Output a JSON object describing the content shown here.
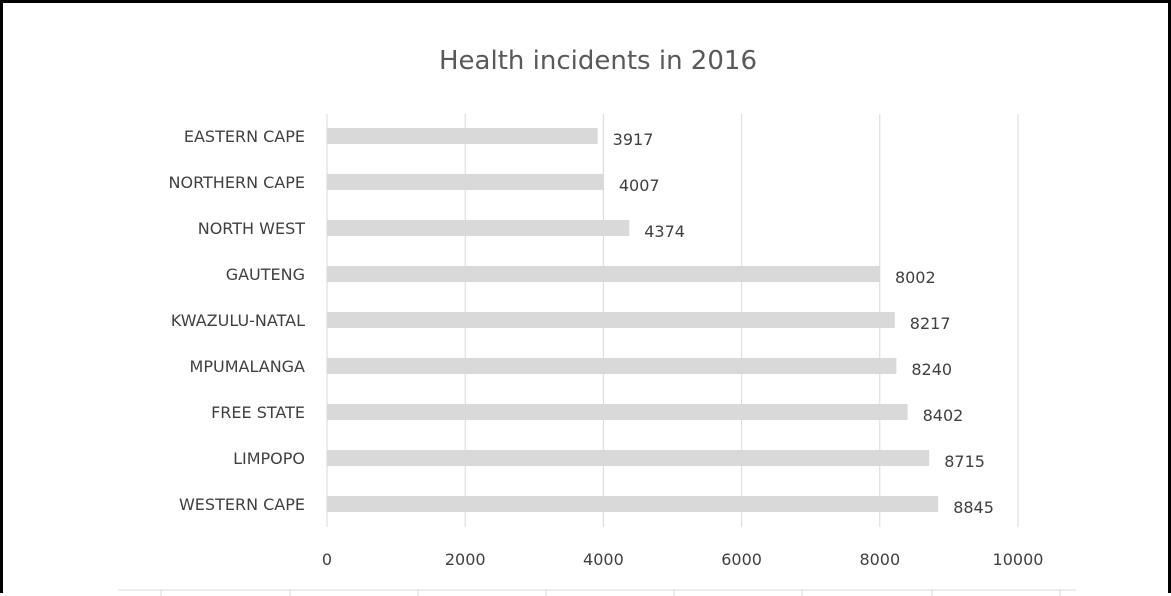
{
  "chart_data": {
    "type": "bar",
    "orientation": "horizontal",
    "title": "Health incidents in 2016",
    "categories": [
      "EASTERN CAPE",
      "NORTHERN CAPE",
      "NORTH WEST",
      "GAUTENG",
      "KWAZULU-NATAL",
      "MPUMALANGA",
      "FREE STATE",
      "LIMPOPO",
      "WESTERN CAPE"
    ],
    "values": [
      3917,
      4007,
      4374,
      8002,
      8217,
      8240,
      8402,
      8715,
      8845
    ],
    "xlabel": "",
    "ylabel": "",
    "xlim": [
      0,
      10000
    ],
    "ticks": [
      "0",
      "2000",
      "4000",
      "6000",
      "8000",
      "10000"
    ],
    "tick_values": [
      0,
      2000,
      4000,
      6000,
      8000,
      10000
    ],
    "data_labels": true,
    "grid": true,
    "legend": "none",
    "colors": {
      "bar": "#d9d9d9",
      "grid": "#d9d9d9",
      "text": "#404040",
      "title": "#595959",
      "frame": "#000000"
    }
  }
}
